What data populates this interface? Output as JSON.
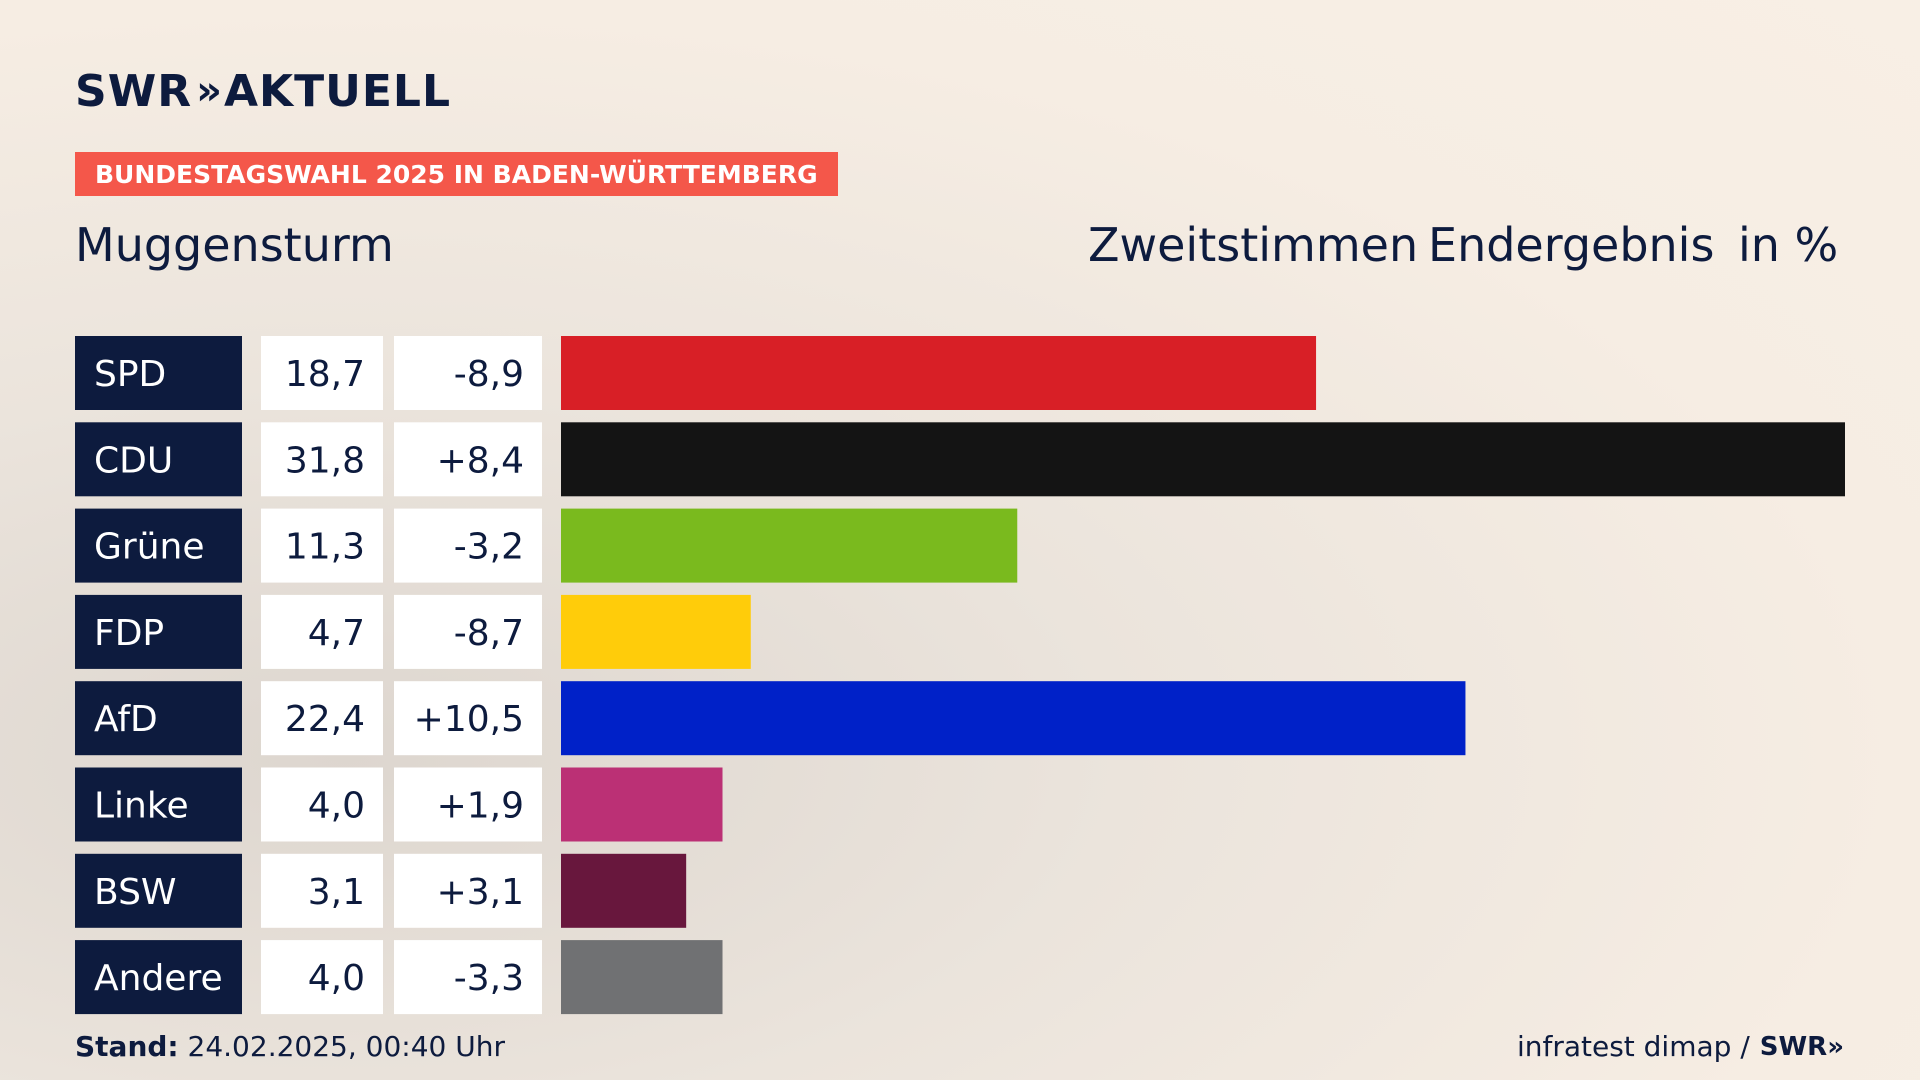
{
  "header": {
    "logo_text": "SWR",
    "logo_chevrons": "»",
    "logo_suffix": "AKTUELL",
    "banner": "BUNDESTAGSWAHL 2025 IN BADEN-WÜRTTEMBERG",
    "place": "Muggensturm",
    "label_votes": "Zweitstimmen",
    "label_status": "Endergebnis",
    "label_unit": "in %"
  },
  "footer": {
    "stand_label": "Stand:",
    "stand_value": "24.02.2025, 00:40 Uhr",
    "source": "infratest dimap /",
    "source_logo": "SWR»"
  },
  "colors": {
    "label_bg": "#0d1b3e",
    "label_text": "#ffffff",
    "value_bg": "#ffffff",
    "banner": "#f4574a"
  },
  "chart_data": {
    "type": "bar",
    "orientation": "horizontal",
    "categories": [
      "SPD",
      "CDU",
      "Grüne",
      "FDP",
      "AfD",
      "Linke",
      "BSW",
      "Andere"
    ],
    "values": [
      18.7,
      31.8,
      11.3,
      4.7,
      22.4,
      4.0,
      3.1,
      4.0
    ],
    "values_display": [
      "18,7",
      "31,8",
      "11,3",
      "4,7",
      "22,4",
      "4,0",
      "3,1",
      "4,0"
    ],
    "change": [
      -8.9,
      8.4,
      -3.2,
      -8.7,
      10.5,
      1.9,
      3.1,
      -3.3
    ],
    "change_display": [
      "-8,9",
      "+8,4",
      "-3,2",
      "-8,7",
      "+10,5",
      "+1,9",
      "+3,1",
      "-3,3"
    ],
    "bar_colors": [
      "#d81f26",
      "#141414",
      "#7aba1e",
      "#ffcc0a",
      "#0021c8",
      "#bb3075",
      "#68173d",
      "#707173"
    ],
    "xlim": [
      0,
      31.8
    ],
    "title": "",
    "xlabel": "",
    "ylabel": "",
    "grid": false,
    "legend": "none"
  }
}
